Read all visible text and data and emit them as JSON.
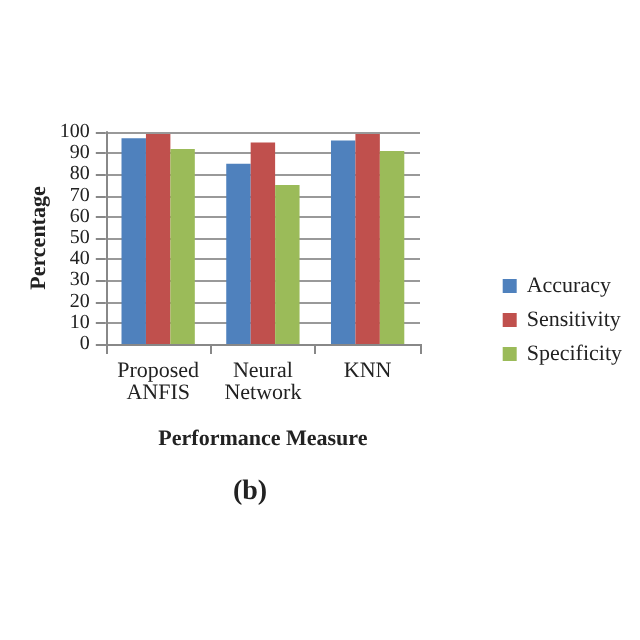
{
  "chart_data": {
    "type": "bar",
    "title": "(b)",
    "xlabel": "Performance Measure",
    "ylabel": "Percentage",
    "categories": [
      "Proposed\nANFIS",
      "Neural\nNetwork",
      "KNN"
    ],
    "series": [
      {
        "name": "Accuracy",
        "color": "#4f81bd",
        "values": [
          97,
          85,
          96
        ]
      },
      {
        "name": "Sensitivity",
        "color": "#c0504d",
        "values": [
          99,
          95,
          99
        ]
      },
      {
        "name": "Specificity",
        "color": "#9bbb59",
        "values": [
          92,
          75,
          91
        ]
      }
    ],
    "ylim": [
      0,
      100
    ],
    "yticks": [
      0,
      10,
      20,
      30,
      40,
      50,
      60,
      70,
      80,
      90,
      100
    ],
    "grid": "y",
    "legend": "right"
  }
}
